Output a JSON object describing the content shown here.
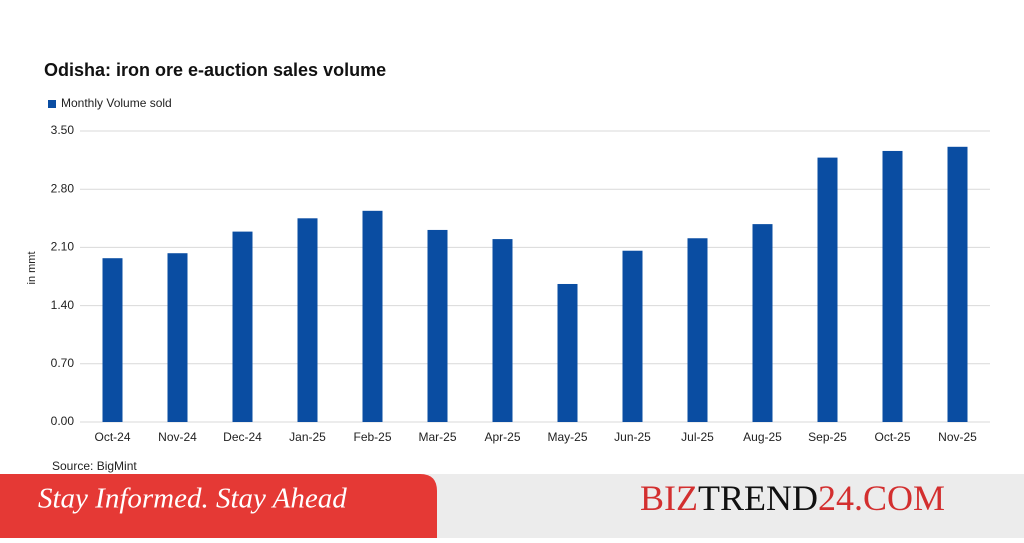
{
  "chart_data": {
    "type": "bar",
    "title": "Odisha: iron ore e-auction sales volume",
    "y_label": "in mmt",
    "source": "Source: BigMint",
    "categories": [
      "Oct-24",
      "Nov-24",
      "Dec-24",
      "Jan-25",
      "Feb-25",
      "Mar-25",
      "Apr-25",
      "May-25",
      "Jun-25",
      "Jul-25",
      "Aug-25",
      "Sep-25",
      "Oct-25",
      "Nov-25"
    ],
    "series": [
      {
        "name": "Monthly Volume sold",
        "color": "#0a4da2",
        "values": [
          1.97,
          2.03,
          2.29,
          2.45,
          2.54,
          2.31,
          2.2,
          1.66,
          2.06,
          2.21,
          2.38,
          3.18,
          3.26,
          3.31
        ]
      }
    ],
    "ylim": [
      0,
      3.5
    ],
    "yticks": [
      {
        "value": 0,
        "label": "0.00"
      },
      {
        "value": 0.7,
        "label": "0.70"
      },
      {
        "value": 1.4,
        "label": "1.40"
      },
      {
        "value": 2.1,
        "label": "2.10"
      },
      {
        "value": 2.8,
        "label": "2.80"
      },
      {
        "value": 3.5,
        "label": "3.50"
      }
    ],
    "grid": true
  },
  "banner": {
    "tagline": "Stay Informed. Stay Ahead",
    "brand_parts": [
      "BIZ",
      "TREND",
      "24.COM"
    ]
  }
}
